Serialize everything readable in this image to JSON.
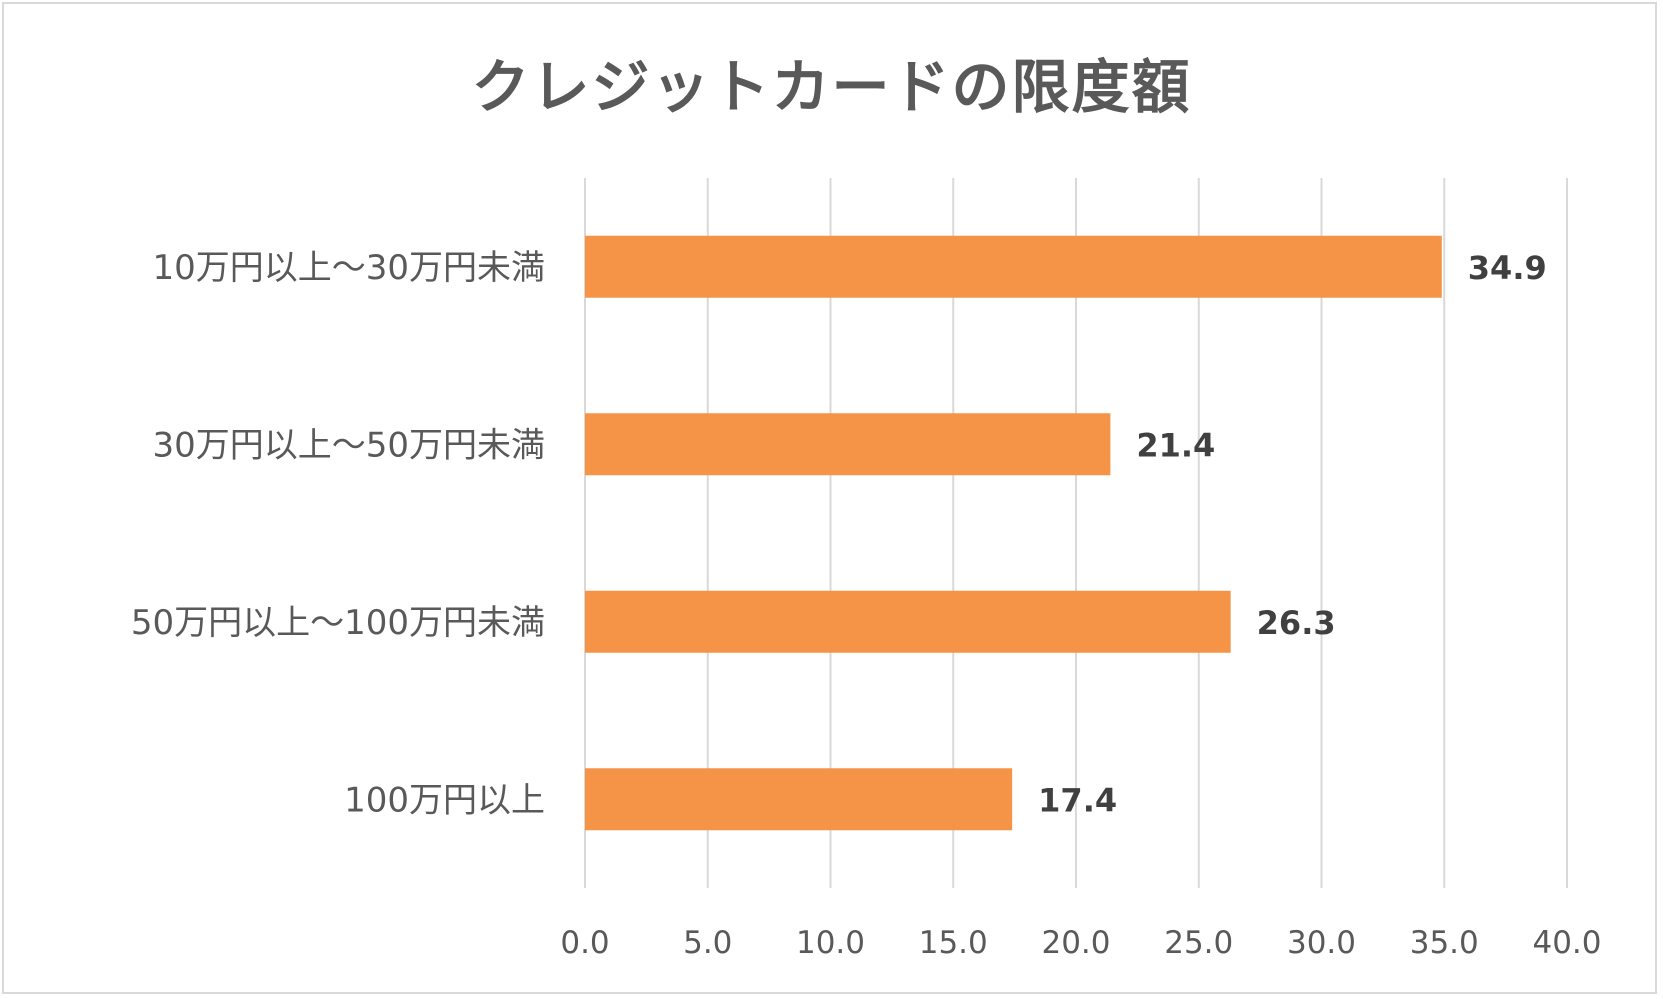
{
  "chart_data": {
    "type": "bar",
    "orientation": "horizontal",
    "title": "クレジットカードの限度額",
    "categories": [
      "10万円以上～30万円未満",
      "30万円以上～50万円未満",
      "50万円以上～100万円未満",
      "100万円以上"
    ],
    "values": [
      34.9,
      21.4,
      26.3,
      17.4
    ],
    "data_labels": [
      "34.9",
      "21.4",
      "26.3",
      "17.4"
    ],
    "xlim": [
      0,
      40
    ],
    "ticks": [
      0,
      5,
      10,
      15,
      20,
      25,
      30,
      35,
      40
    ],
    "tick_labels": [
      "0.0",
      "5.0",
      "10.0",
      "15.0",
      "20.0",
      "25.0",
      "30.0",
      "35.0",
      "40.0"
    ],
    "grid": true,
    "xlabel": "",
    "ylabel": "",
    "bar_color": "#f59446",
    "grid_color": "#d9d9d9",
    "legend": "none"
  }
}
